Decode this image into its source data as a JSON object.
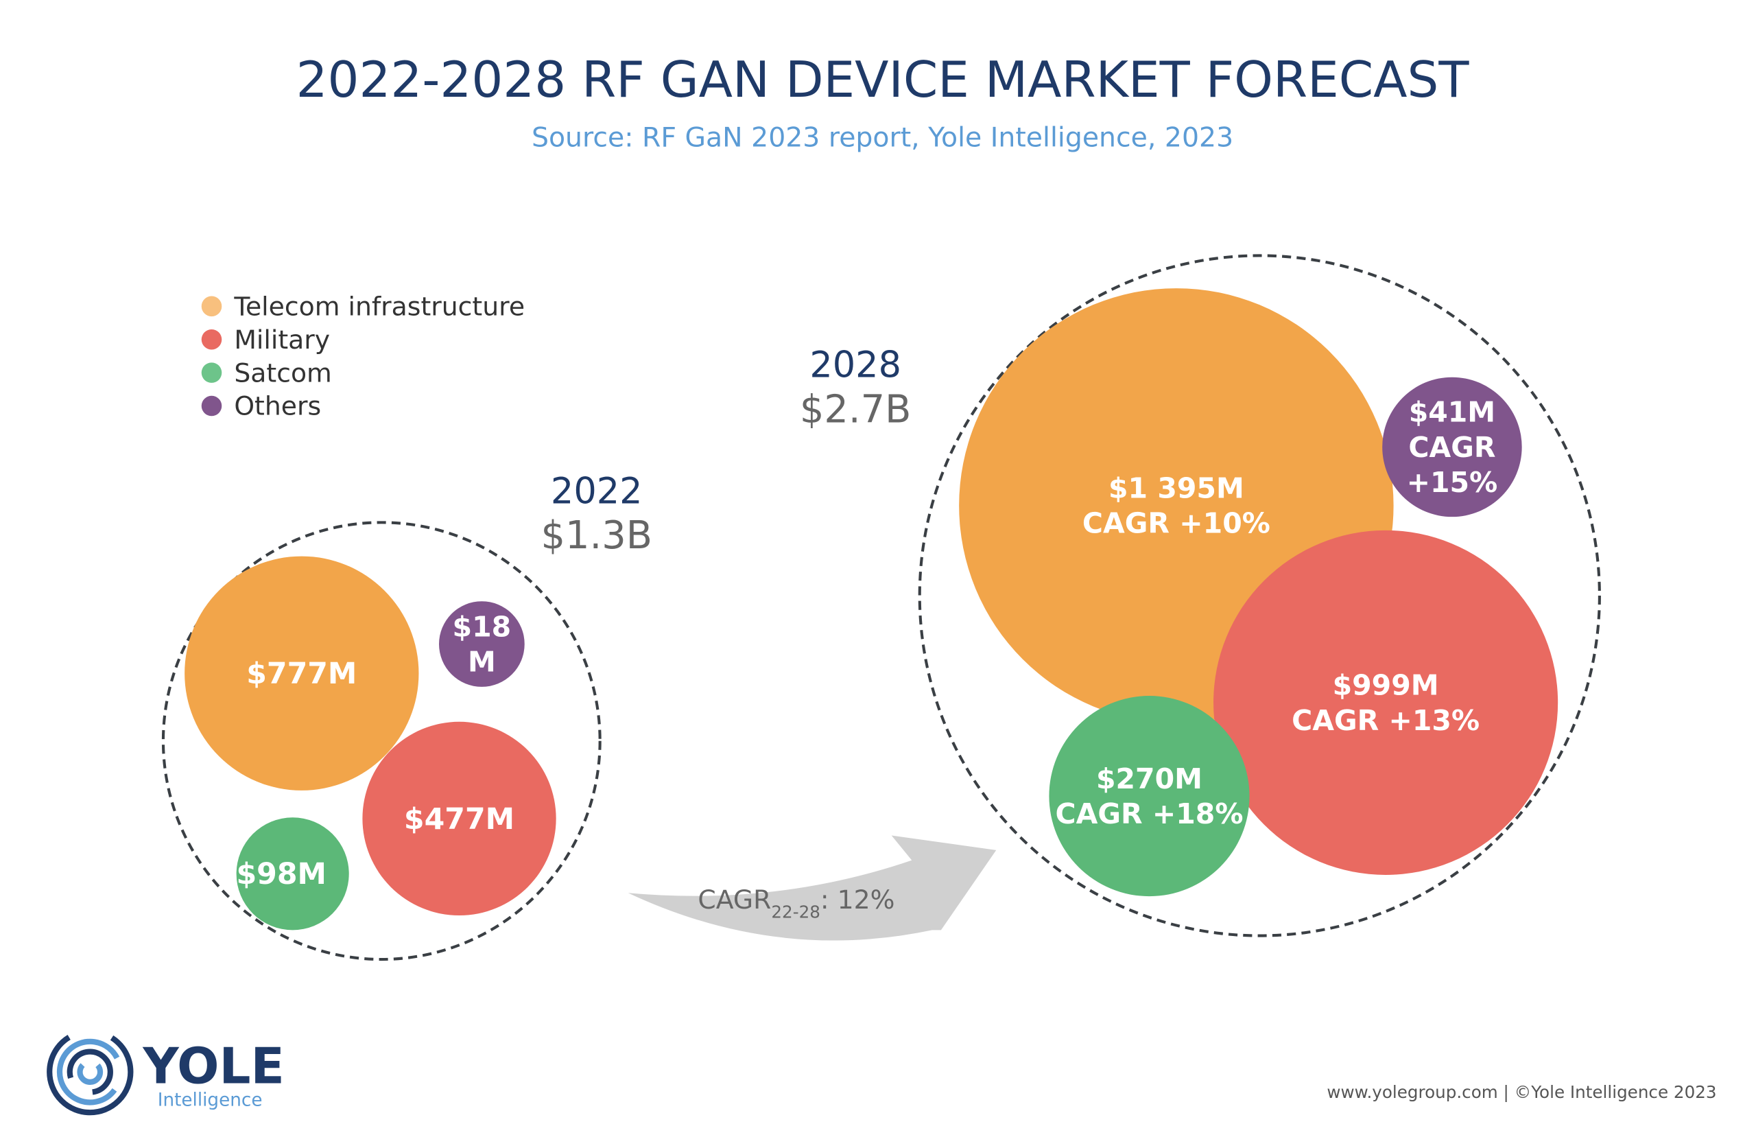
{
  "title": "2022-2028 RF GAN DEVICE MARKET FORECAST",
  "subtitle": "Source: RF GaN 2023 report, Yole Intelligence, 2023",
  "colors": {
    "title": "#1f3a68",
    "subtitle": "#5b9bd5",
    "telecom": "#f2a54a",
    "military": "#e96a61",
    "satcom": "#5cb878",
    "others": "#80558c",
    "arrow": "#d0d0d0",
    "total": "#666666"
  },
  "legend": [
    {
      "label": "Telecom infrastructure",
      "color": "#f8c07e"
    },
    {
      "label": "Military",
      "color": "#e96a61"
    },
    {
      "label": "Satcom",
      "color": "#6dc48a"
    },
    {
      "label": "Others",
      "color": "#80558c"
    }
  ],
  "chart_data": {
    "type": "bubble",
    "title": "2022-2028 RF GAN DEVICE MARKET FORECAST",
    "categories": [
      "Telecom infrastructure",
      "Military",
      "Satcom",
      "Others"
    ],
    "groups": [
      {
        "year": "2022",
        "total": "$1.3B",
        "values_musd": [
          777,
          477,
          98,
          18
        ],
        "labels": [
          [
            "$777M"
          ],
          [
            "$477M"
          ],
          [
            "$98M"
          ],
          [
            "$18",
            "M"
          ]
        ]
      },
      {
        "year": "2028",
        "total": "$2.7B",
        "values_musd": [
          1395,
          999,
          270,
          41
        ],
        "cagr": [
          "+10%",
          "+13%",
          "+18%",
          "+15%"
        ],
        "labels": [
          [
            "$1 395M",
            "CAGR +10%"
          ],
          [
            "$999M",
            "CAGR +13%"
          ],
          [
            "$270M",
            "CAGR +18%"
          ],
          [
            "$41M",
            "CAGR",
            "+15%"
          ]
        ]
      }
    ],
    "overall_cagr": {
      "label": "CAGR",
      "sub": "22-28",
      "value": ": 12%"
    }
  },
  "logo": {
    "name": "YOLE",
    "tagline": "Intelligence"
  },
  "footer": "www.yolegroup.com | ©Yole Intelligence 2023"
}
